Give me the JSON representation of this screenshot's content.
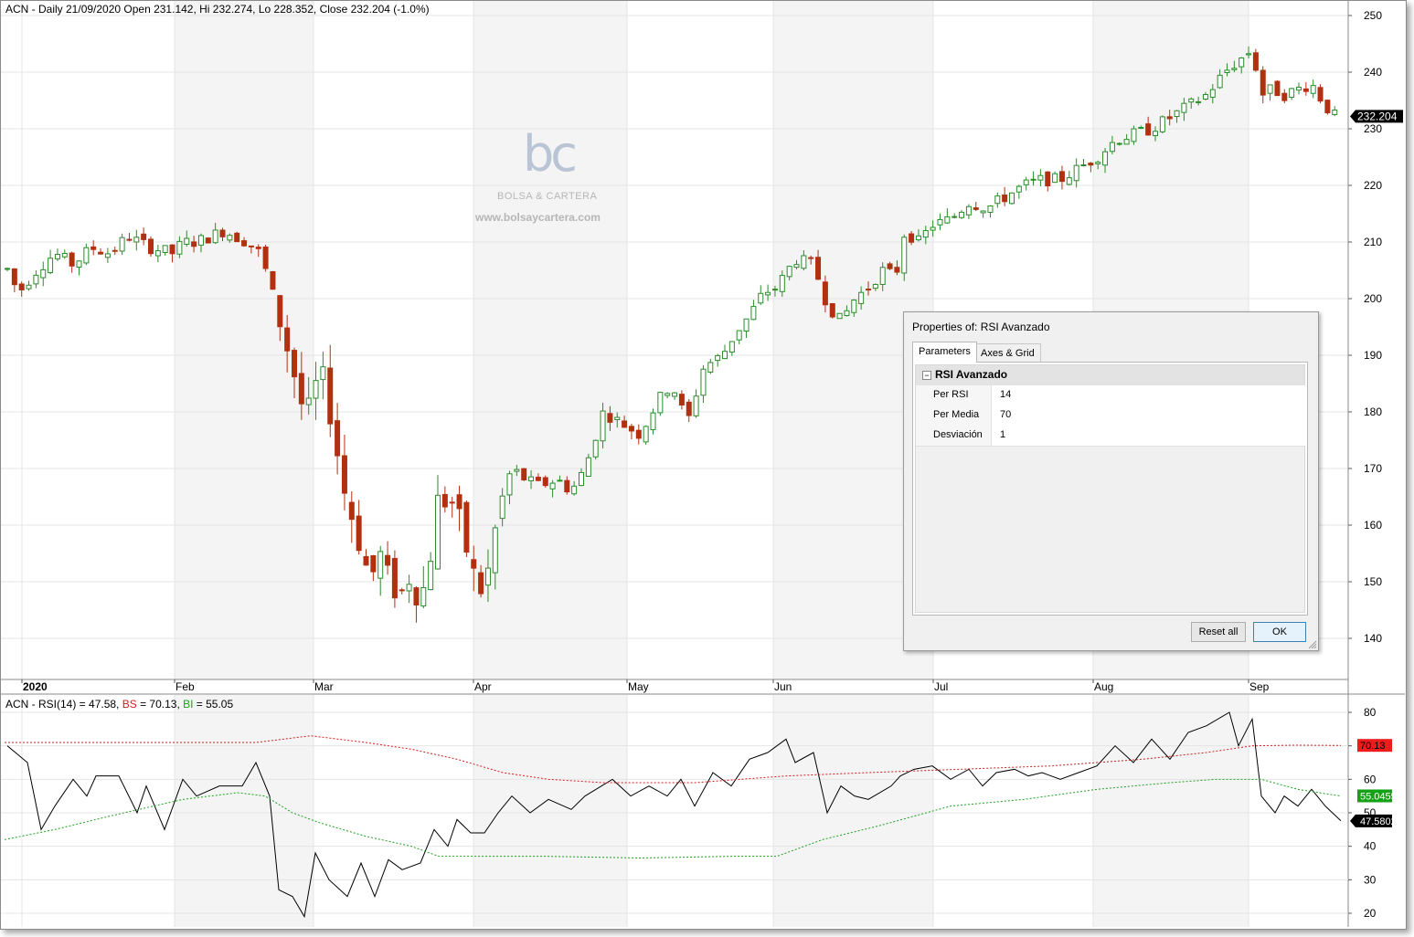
{
  "main_chart": {
    "header": "ACN - Daily 21/09/2020 Open 231.142, Hi 232.274, Lo 228.352, Close 232.204 (-1.0%)",
    "price_label": "232.204",
    "y_ticks": [
      "250",
      "240",
      "230",
      "220",
      "210",
      "200",
      "190",
      "180",
      "170",
      "160",
      "150",
      "140"
    ],
    "months": [
      "2020",
      "Feb",
      "Mar",
      "Apr",
      "May",
      "Jun",
      "Jul",
      "Aug",
      "Sep"
    ],
    "colors": {
      "up": "#2a8c2a",
      "down": "#b03010",
      "gridline": "#e4e4e4",
      "shade": "#f4f4f4"
    }
  },
  "watermark": {
    "logo_text": "bc",
    "name": "BOLSA & CARTERA",
    "url": "www.bolsaycartera.com"
  },
  "rsi_panel": {
    "header_prefix": "ACN - RSI(14) = 47.58, ",
    "bs_text": "BS",
    "bs_value": " = 70.13, ",
    "bi_text": "BI",
    "bi_value": " = 55.05",
    "y_ticks": [
      "80",
      "70",
      "60",
      "50",
      "40",
      "30",
      "20"
    ],
    "label_bs": "70.13",
    "label_bi": "55.0455",
    "label_rsi": "47.5802",
    "colors": {
      "rsi": "#000000",
      "bs": "#d02020",
      "bi": "#20a020"
    }
  },
  "dialog": {
    "title": "Properties of: RSI Avanzado",
    "tabs": [
      "Parameters",
      "Axes & Grid"
    ],
    "section": "RSI Avanzado",
    "section_toggle": "−",
    "params": [
      {
        "name": "Per RSI",
        "value": "14"
      },
      {
        "name": "Per Media",
        "value": "70"
      },
      {
        "name": "Desviación",
        "value": "1"
      }
    ],
    "reset_label": "Reset all",
    "ok_label": "OK"
  }
}
